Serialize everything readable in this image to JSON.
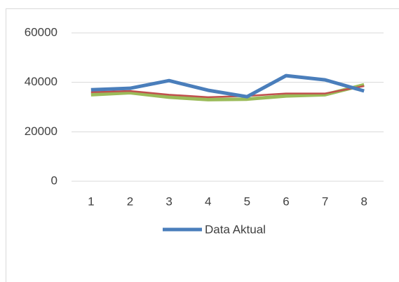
{
  "chart_data": {
    "type": "line",
    "categories": [
      "1",
      "2",
      "3",
      "4",
      "5",
      "6",
      "7",
      "8"
    ],
    "series": [
      {
        "name": "Data Aktual",
        "color": "#4a7ebb",
        "values": [
          37000,
          37600,
          40700,
          36800,
          34200,
          42700,
          41000,
          36500
        ]
      },
      {
        "color": "#c0504d",
        "values": [
          36000,
          36500,
          35000,
          34000,
          34500,
          35500,
          35500,
          38500
        ]
      },
      {
        "color": "#9bbb59",
        "values": [
          35000,
          35800,
          34000,
          33000,
          33200,
          34500,
          35000,
          39000
        ]
      }
    ],
    "ylim": [
      0,
      60000
    ],
    "yticks": [
      0,
      20000,
      40000,
      60000
    ],
    "grid": true,
    "legend": "bottom"
  }
}
